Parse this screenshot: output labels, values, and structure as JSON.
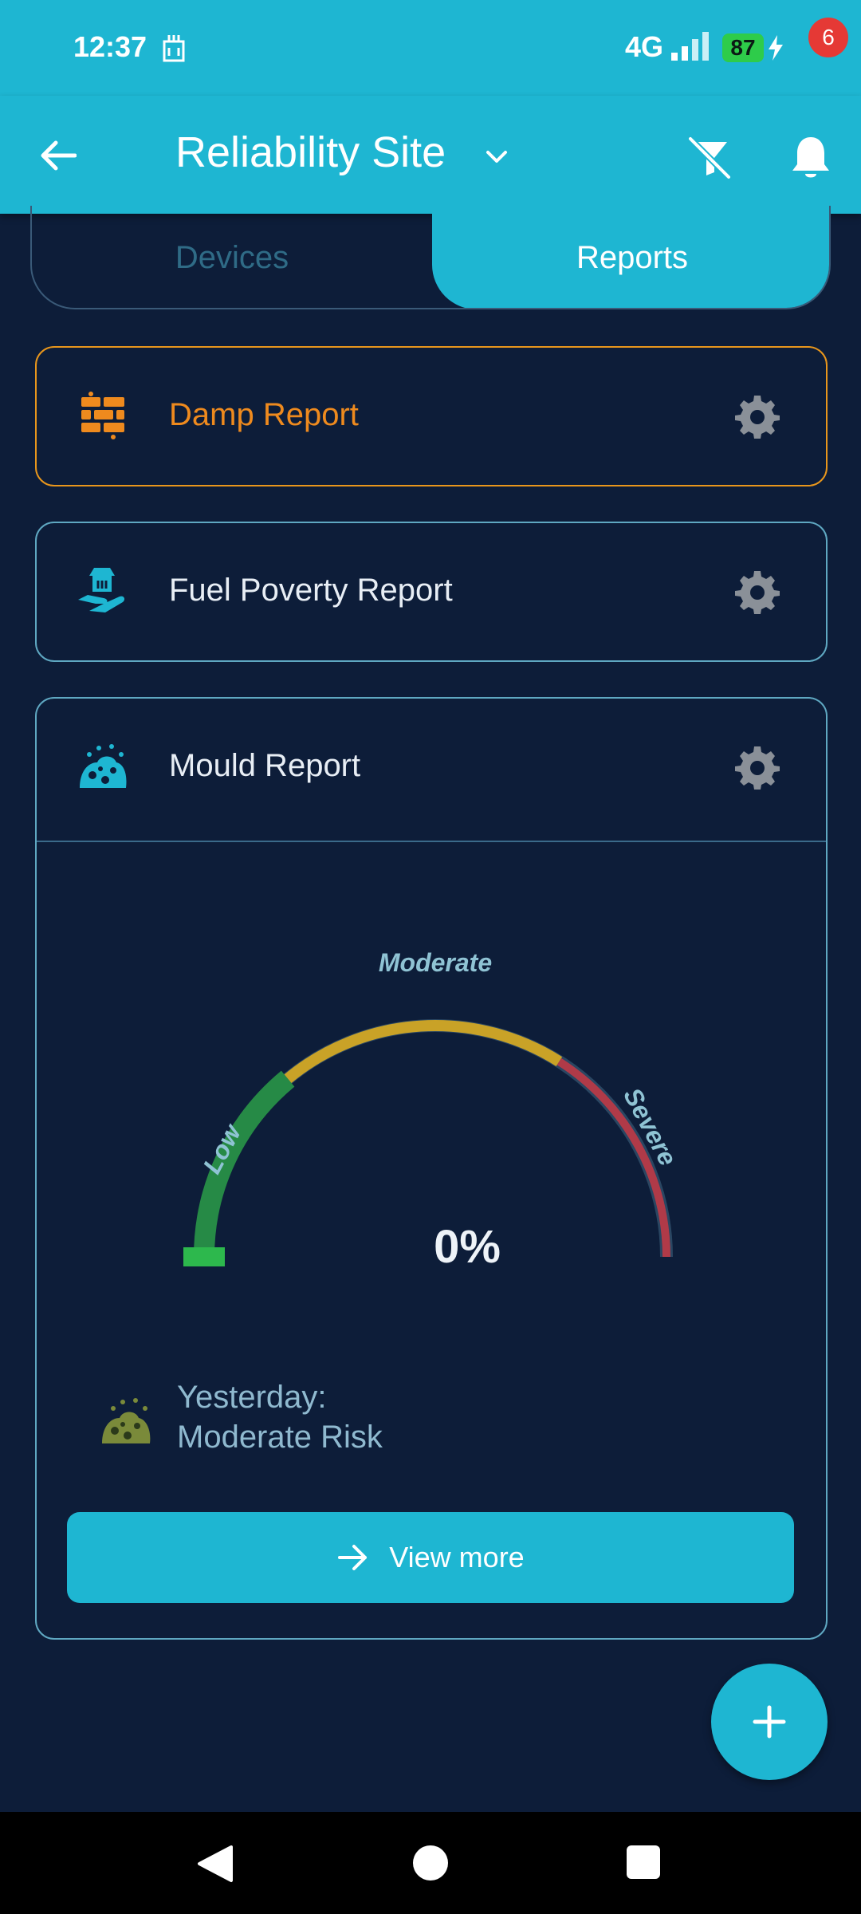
{
  "status_bar": {
    "time": "12:37",
    "network": "4G",
    "battery": "87",
    "battery_color": "#2ecc4a"
  },
  "app_bar": {
    "title": "Reliability Site",
    "notification_count": "6",
    "accent_color": "#1eb6d2"
  },
  "tabs": [
    {
      "label": "Devices",
      "selected": false
    },
    {
      "label": "Reports",
      "selected": true
    }
  ],
  "reports": [
    {
      "title": "Damp Report",
      "icon": "brick-wall-icon",
      "highlighted": true,
      "highlight_color": "#e8961c"
    },
    {
      "title": "Fuel Poverty Report",
      "icon": "hand-house-icon",
      "highlighted": false
    },
    {
      "title": "Mould Report",
      "icon": "mould-icon",
      "highlighted": false,
      "expanded": true
    }
  ],
  "mould_gauge": {
    "value_text": "0%",
    "value_fraction": 0.0,
    "zones": [
      {
        "label": "Low",
        "color": "#268a46"
      },
      {
        "label": "Moderate",
        "color": "#c9a227"
      },
      {
        "label": "Severe",
        "color": "#b03a48"
      }
    ],
    "track_color": "#2a4662"
  },
  "yesterday": {
    "label": "Yesterday:",
    "risk": "Moderate Risk"
  },
  "view_more_button": {
    "label": "View more"
  }
}
